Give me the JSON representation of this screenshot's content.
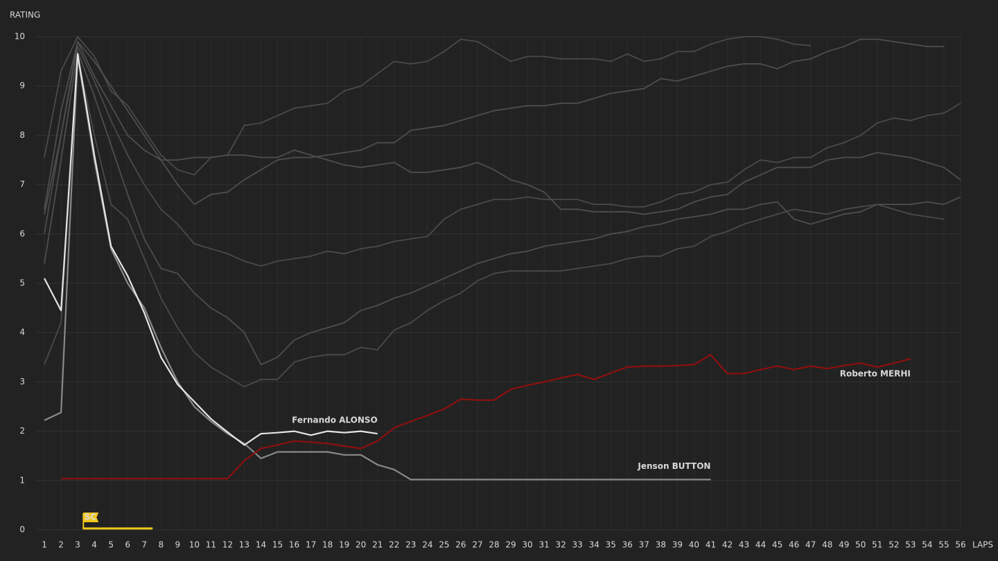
{
  "chart_data": {
    "type": "line",
    "y_label": "RATING",
    "x_label": "LAPS",
    "xlim": [
      0.5,
      56
    ],
    "ylim": [
      0,
      10
    ],
    "xticks": [
      1,
      2,
      3,
      4,
      5,
      6,
      7,
      8,
      9,
      10,
      11,
      12,
      13,
      14,
      15,
      16,
      17,
      18,
      19,
      20,
      21,
      22,
      23,
      24,
      25,
      26,
      27,
      28,
      29,
      30,
      31,
      32,
      33,
      34,
      35,
      36,
      37,
      38,
      39,
      40,
      41,
      42,
      43,
      44,
      45,
      46,
      47,
      48,
      49,
      50,
      51,
      52,
      53,
      54,
      55,
      56
    ],
    "yticks": [
      0,
      1,
      2,
      3,
      4,
      5,
      6,
      7,
      8,
      9,
      10
    ],
    "grid": true,
    "x": [
      1,
      2,
      3,
      4,
      5,
      6,
      7,
      8,
      9,
      10,
      11,
      12,
      13,
      14,
      15,
      16,
      17,
      18,
      19,
      20,
      21,
      22,
      23,
      24,
      25,
      26,
      27,
      28,
      29,
      30,
      31,
      32,
      33,
      34,
      35,
      36,
      37,
      38,
      39,
      40,
      41,
      42,
      43,
      44,
      45,
      46,
      47,
      48,
      49,
      50,
      51,
      52,
      53,
      54,
      55,
      56
    ],
    "series": [
      {
        "color": "#4a4a4a",
        "values": [
          7.55,
          9.3,
          10,
          9.6,
          8.9,
          8.6,
          8.1,
          7.6,
          7.3,
          7.2,
          7.55,
          7.6,
          8.2,
          8.25,
          8.4,
          8.55,
          8.6,
          8.65,
          8.9,
          9.0,
          9.25,
          9.5,
          9.45,
          9.5,
          9.7,
          9.95,
          9.9,
          9.7,
          9.5,
          9.6,
          9.6,
          9.55,
          9.55,
          9.55,
          9.5,
          9.65,
          9.5,
          9.55,
          9.7,
          9.7,
          9.85,
          9.95,
          10,
          10,
          9.95,
          9.85,
          9.82,
          null,
          null,
          null,
          null,
          null,
          null,
          null,
          null,
          null
        ]
      },
      {
        "color": "#4e4e4e",
        "values": [
          6.5,
          8.5,
          9.9,
          9.2,
          8.6,
          8.0,
          7.7,
          7.5,
          7.5,
          7.55,
          7.55,
          7.6,
          7.6,
          7.55,
          7.55,
          7.7,
          7.6,
          7.5,
          7.4,
          7.35,
          7.4,
          7.45,
          7.25,
          7.25,
          7.3,
          7.35,
          7.45,
          7.3,
          7.1,
          7.0,
          6.85,
          6.5,
          6.5,
          6.45,
          6.45,
          6.45,
          6.4,
          6.45,
          6.5,
          6.65,
          6.75,
          6.8,
          7.05,
          7.2,
          7.35,
          7.35,
          7.35,
          7.5,
          7.55,
          7.55,
          7.65,
          7.6,
          7.55,
          7.45,
          7.35,
          7.1
        ]
      },
      {
        "color": "#4a4a4a",
        "values": [
          6.0,
          8.0,
          9.8,
          9.1,
          8.3,
          7.6,
          7.0,
          6.5,
          6.2,
          5.8,
          5.7,
          5.6,
          5.45,
          5.35,
          5.45,
          5.5,
          5.55,
          5.65,
          5.6,
          5.7,
          5.75,
          5.85,
          5.9,
          5.95,
          6.3,
          6.5,
          6.6,
          6.7,
          6.7,
          6.75,
          6.7,
          6.7,
          6.7,
          6.6,
          6.6,
          6.55,
          6.55,
          6.65,
          6.8,
          6.85,
          7.0,
          7.05,
          7.3,
          7.5,
          7.45,
          7.55,
          7.55,
          7.75,
          7.85,
          8.0,
          8.25,
          8.35,
          8.3,
          8.4,
          8.45,
          8.65
        ]
      },
      {
        "color": "#4e4e4e",
        "values": [
          5.4,
          7.5,
          9.7,
          8.8,
          7.8,
          6.8,
          5.9,
          5.3,
          5.2,
          4.8,
          4.5,
          4.3,
          4.0,
          3.35,
          3.5,
          3.85,
          4.0,
          4.1,
          4.2,
          4.45,
          4.55,
          4.7,
          4.8,
          4.95,
          5.1,
          5.25,
          5.4,
          5.5,
          5.6,
          5.65,
          5.75,
          5.8,
          5.85,
          5.9,
          6.0,
          6.05,
          6.15,
          6.2,
          6.3,
          6.35,
          6.4,
          6.5,
          6.5,
          6.6,
          6.65,
          6.3,
          6.2,
          6.3,
          6.4,
          6.45,
          6.6,
          6.6,
          6.6,
          6.65,
          6.6,
          6.75
        ]
      },
      {
        "color": "#4a4a4a",
        "values": [
          3.35,
          4.2,
          9.6,
          8.0,
          6.6,
          6.3,
          5.5,
          4.7,
          4.1,
          3.6,
          3.3,
          3.1,
          2.9,
          3.05,
          3.05,
          3.4,
          3.5,
          3.55,
          3.55,
          3.7,
          3.65,
          4.05,
          4.2,
          4.45,
          4.65,
          4.8,
          5.05,
          5.2,
          5.25,
          5.25,
          5.25,
          5.25,
          5.3,
          5.35,
          5.4,
          5.5,
          5.55,
          5.55,
          5.7,
          5.75,
          5.95,
          6.05,
          6.2,
          6.3,
          6.4,
          6.5,
          6.45,
          6.4,
          6.5,
          6.55,
          6.6,
          6.5,
          6.4,
          6.35,
          6.3,
          null
        ]
      },
      {
        "color": "#4e4e4e",
        "values": [
          6.4,
          8.0,
          9.9,
          9.5,
          9.0,
          8.5,
          8.0,
          7.5,
          7.0,
          6.6,
          6.8,
          6.85,
          7.1,
          7.3,
          7.5,
          7.55,
          7.55,
          7.6,
          7.65,
          7.7,
          7.85,
          7.85,
          8.1,
          8.15,
          8.2,
          8.3,
          8.4,
          8.5,
          8.55,
          8.6,
          8.6,
          8.65,
          8.65,
          8.75,
          8.85,
          8.9,
          8.95,
          9.15,
          9.1,
          9.2,
          9.3,
          9.4,
          9.45,
          9.45,
          9.35,
          9.5,
          9.55,
          9.7,
          9.8,
          9.95,
          9.95,
          9.9,
          9.85,
          9.8,
          9.8,
          null
        ]
      },
      {
        "name": "Jenson BUTTON",
        "color": "#8a8a8a",
        "label_side": "above",
        "values": [
          2.22,
          2.38,
          9.6,
          7.5,
          5.7,
          5.0,
          4.5,
          3.7,
          3.0,
          2.5,
          2.2,
          1.95,
          1.75,
          1.45,
          1.58,
          1.58,
          1.58,
          1.58,
          1.52,
          1.52,
          1.32,
          1.22,
          1.02,
          1.02,
          1.02,
          1.02,
          1.02,
          1.02,
          1.02,
          1.02,
          1.02,
          1.02,
          1.02,
          1.02,
          1.02,
          1.02,
          1.02,
          1.02,
          1.02,
          1.02,
          1.02,
          null,
          null,
          null,
          null,
          null,
          null,
          null,
          null,
          null,
          null,
          null,
          null,
          null,
          null,
          null
        ]
      },
      {
        "name": "Roberto MERHI",
        "color": "#8e0f0f",
        "label_side": "below",
        "values": [
          null,
          1.04,
          1.04,
          1.04,
          1.04,
          1.04,
          1.04,
          1.04,
          1.04,
          1.04,
          1.04,
          1.04,
          1.4,
          1.65,
          1.72,
          1.8,
          1.78,
          1.75,
          1.7,
          1.65,
          1.8,
          2.07,
          2.2,
          2.32,
          2.45,
          2.65,
          2.63,
          2.63,
          2.85,
          2.93,
          3.0,
          3.08,
          3.15,
          3.05,
          3.18,
          3.3,
          3.32,
          3.32,
          3.33,
          3.35,
          3.55,
          3.17,
          3.17,
          3.25,
          3.32,
          3.25,
          3.32,
          3.27,
          3.33,
          3.38,
          3.3,
          3.38,
          3.47,
          null,
          null,
          null
        ]
      },
      {
        "name": "Fernando ALONSO",
        "color": "#e6e6e6",
        "label_side": "above",
        "values": [
          5.1,
          4.45,
          9.65,
          7.6,
          5.75,
          5.15,
          4.4,
          3.5,
          2.95,
          2.6,
          2.25,
          1.98,
          1.72,
          1.95,
          1.97,
          2.0,
          1.92,
          2.0,
          1.97,
          2.0,
          1.95,
          null,
          null,
          null,
          null,
          null,
          null,
          null,
          null,
          null,
          null,
          null,
          null,
          null,
          null,
          null,
          null,
          null,
          null,
          null,
          null,
          null,
          null,
          null,
          null,
          null,
          null,
          null,
          null,
          null,
          null,
          null,
          null,
          null,
          null,
          null
        ]
      }
    ],
    "annotations": [
      {
        "label": "SC",
        "x": [
          3.3,
          7.5
        ],
        "color": "#f2c71b"
      }
    ]
  }
}
